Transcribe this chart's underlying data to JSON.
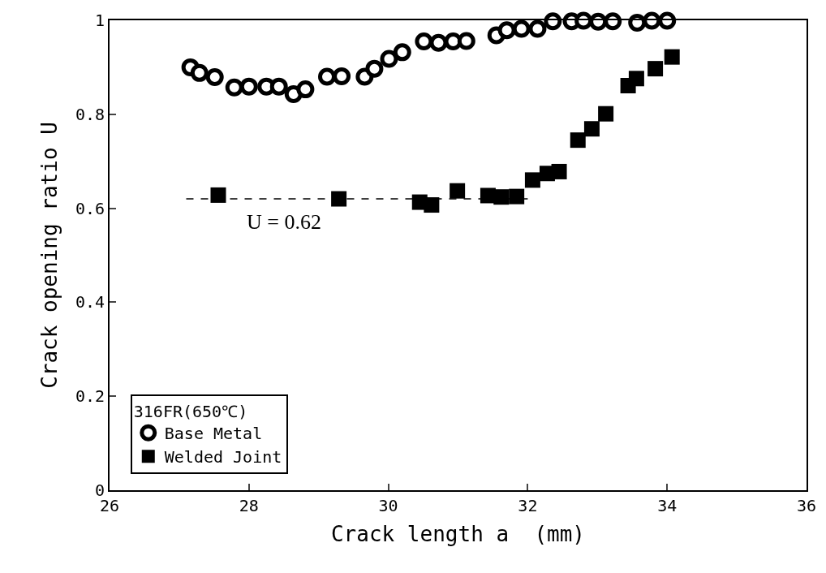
{
  "chart_data": {
    "type": "scatter",
    "xlabel": "Crack length a  (mm)",
    "ylabel": "Crack opening ratio U",
    "legend_title": "316FR(650℃)",
    "xlim": [
      26,
      36
    ],
    "xticks": [
      26,
      28,
      30,
      32,
      34,
      36
    ],
    "ylim": [
      0,
      1
    ],
    "yticks": [
      0,
      0.2,
      0.4,
      0.6,
      0.8,
      1
    ],
    "legend": "bottom left",
    "annotations": [
      "U = 0.62"
    ],
    "series": [
      {
        "name": "Base Metal",
        "color": "#000000",
        "marker": "circle",
        "x": [
          27.16,
          27.29,
          27.51,
          27.79,
          28.0,
          28.25,
          28.43,
          28.64,
          28.81,
          29.12,
          29.33,
          29.66,
          29.8,
          30.01,
          30.2,
          30.51,
          30.72,
          30.93,
          31.12,
          31.55,
          31.7,
          31.91,
          32.14,
          32.36,
          32.63,
          32.8,
          33.01,
          33.22,
          33.57,
          33.78,
          34.0
        ],
        "values": [
          0.9,
          0.888,
          0.879,
          0.857,
          0.859,
          0.859,
          0.859,
          0.843,
          0.853,
          0.88,
          0.881,
          0.88,
          0.897,
          0.918,
          0.932,
          0.955,
          0.952,
          0.955,
          0.956,
          0.968,
          0.979,
          0.982,
          0.982,
          0.998,
          0.998,
          0.999,
          0.997,
          0.998,
          0.995,
          0.999,
          0.999
        ]
      },
      {
        "name": "Welded Joint",
        "color": "#000000",
        "marker": "square",
        "x": [
          27.56,
          29.29,
          30.45,
          30.62,
          30.99,
          31.43,
          31.62,
          31.84,
          32.07,
          32.28,
          32.45,
          32.72,
          32.92,
          33.12,
          33.44,
          33.56,
          33.83,
          34.07
        ],
        "values": [
          0.628,
          0.62,
          0.613,
          0.607,
          0.637,
          0.627,
          0.624,
          0.625,
          0.66,
          0.674,
          0.678,
          0.745,
          0.769,
          0.801,
          0.861,
          0.876,
          0.897,
          0.922
        ]
      },
      {
        "type": "line",
        "color": "#000000",
        "marker": "none",
        "line_style": "dashed",
        "x": [
          27.1,
          32.0
        ],
        "values": [
          0.62,
          0.62
        ]
      }
    ]
  }
}
